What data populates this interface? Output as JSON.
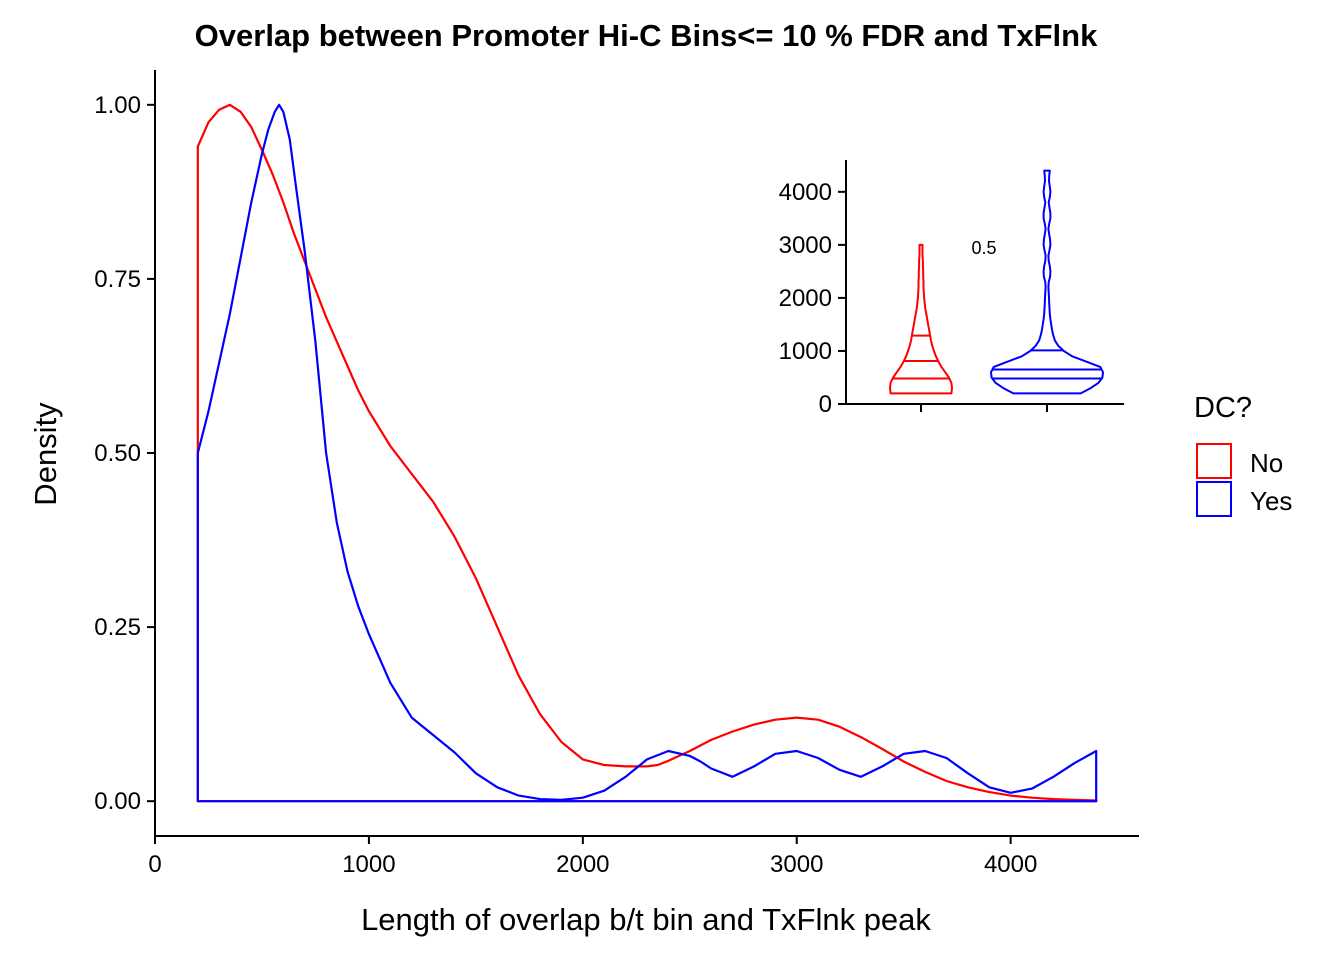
{
  "chart_data": [
    {
      "type": "area",
      "title": "Overlap between Promoter Hi-C Bins<= 10 % FDR and TxFlnk",
      "xlabel": "Length of overlap b/t bin and TxFlnk peak",
      "ylabel": "Density",
      "xlim": [
        0,
        4600
      ],
      "ylim": [
        -0.05,
        1.05
      ],
      "x_ticks": [
        "0",
        "1000",
        "2000",
        "3000",
        "4000"
      ],
      "y_ticks": [
        "0.00",
        "0.25",
        "0.50",
        "0.75",
        "1.00"
      ],
      "grid": false,
      "series": [
        {
          "name": "No",
          "color": "#ff0000",
          "x": [
            200,
            250,
            300,
            350,
            400,
            450,
            500,
            550,
            600,
            650,
            700,
            750,
            800,
            850,
            900,
            950,
            1000,
            1100,
            1200,
            1300,
            1400,
            1500,
            1600,
            1700,
            1800,
            1900,
            2000,
            2100,
            2200,
            2300,
            2350,
            2400,
            2500,
            2600,
            2700,
            2800,
            2900,
            3000,
            3100,
            3200,
            3300,
            3400,
            3500,
            3600,
            3700,
            3800,
            3900,
            4000,
            4100,
            4200,
            4300,
            4400
          ],
          "y": [
            0.94,
            0.975,
            0.993,
            1.0,
            0.99,
            0.968,
            0.935,
            0.9,
            0.86,
            0.815,
            0.775,
            0.735,
            0.695,
            0.66,
            0.625,
            0.59,
            0.56,
            0.51,
            0.47,
            0.43,
            0.38,
            0.32,
            0.25,
            0.18,
            0.125,
            0.085,
            0.06,
            0.052,
            0.05,
            0.05,
            0.052,
            0.058,
            0.072,
            0.088,
            0.1,
            0.11,
            0.117,
            0.12,
            0.117,
            0.107,
            0.092,
            0.075,
            0.057,
            0.042,
            0.029,
            0.02,
            0.013,
            0.008,
            0.005,
            0.003,
            0.002,
            0.001
          ]
        },
        {
          "name": "Yes",
          "color": "#0000ff",
          "x": [
            200,
            250,
            300,
            350,
            400,
            450,
            500,
            530,
            560,
            580,
            600,
            630,
            660,
            700,
            750,
            800,
            850,
            900,
            950,
            1000,
            1100,
            1200,
            1300,
            1400,
            1500,
            1600,
            1700,
            1800,
            1900,
            2000,
            2100,
            2200,
            2300,
            2400,
            2500,
            2550,
            2600,
            2700,
            2800,
            2900,
            3000,
            3100,
            3200,
            3300,
            3400,
            3500,
            3600,
            3700,
            3800,
            3900,
            4000,
            4100,
            4200,
            4300,
            4400
          ],
          "y": [
            0.5,
            0.56,
            0.63,
            0.7,
            0.78,
            0.86,
            0.93,
            0.965,
            0.99,
            1.0,
            0.99,
            0.95,
            0.88,
            0.79,
            0.66,
            0.5,
            0.4,
            0.33,
            0.28,
            0.24,
            0.17,
            0.12,
            0.095,
            0.07,
            0.04,
            0.02,
            0.008,
            0.003,
            0.002,
            0.005,
            0.015,
            0.035,
            0.06,
            0.072,
            0.065,
            0.057,
            0.047,
            0.035,
            0.05,
            0.068,
            0.072,
            0.062,
            0.045,
            0.035,
            0.05,
            0.068,
            0.072,
            0.062,
            0.04,
            0.02,
            0.012,
            0.018,
            0.035,
            0.055,
            0.072
          ]
        }
      ],
      "legend": {
        "title": "DC?",
        "entries": [
          "No",
          "Yes"
        ],
        "placement": "right"
      }
    },
    {
      "type": "violin",
      "ylim": [
        0,
        4600
      ],
      "y_ticks": [
        "0",
        "1000",
        "2000",
        "3000",
        "4000"
      ],
      "annotation": "0.5",
      "series": [
        {
          "name": "No",
          "color": "#ff0000",
          "profile_y": [
            200,
            300,
            400,
            500,
            600,
            700,
            800,
            900,
            1000,
            1100,
            1200,
            1300,
            1400,
            1500,
            1600,
            1700,
            1800,
            1900,
            2000,
            2100,
            2200,
            2300,
            2400,
            2500,
            2600,
            2700,
            2800,
            2900,
            3000
          ],
          "profile_half_width": [
            0.98,
            1.0,
            0.98,
            0.9,
            0.78,
            0.66,
            0.56,
            0.48,
            0.42,
            0.36,
            0.32,
            0.29,
            0.26,
            0.23,
            0.2,
            0.17,
            0.14,
            0.12,
            0.1,
            0.09,
            0.08,
            0.08,
            0.07,
            0.07,
            0.06,
            0.06,
            0.05,
            0.05,
            0.05
          ],
          "quantiles": [
            480,
            810,
            1290
          ]
        },
        {
          "name": "Yes",
          "color": "#0000ff",
          "profile_y": [
            200,
            300,
            400,
            500,
            600,
            700,
            800,
            900,
            1000,
            1100,
            1200,
            1300,
            1400,
            1500,
            1600,
            1700,
            1800,
            1900,
            2000,
            2100,
            2200,
            2300,
            2400,
            2500,
            2600,
            2700,
            2800,
            2900,
            3000,
            3100,
            3200,
            3300,
            3400,
            3500,
            3600,
            3700,
            3800,
            3900,
            4000,
            4100,
            4200,
            4300,
            4400
          ],
          "profile_half_width": [
            0.6,
            0.78,
            0.92,
            0.99,
            1.0,
            0.95,
            0.7,
            0.45,
            0.3,
            0.2,
            0.14,
            0.11,
            0.09,
            0.075,
            0.06,
            0.05,
            0.045,
            0.04,
            0.035,
            0.03,
            0.025,
            0.03,
            0.055,
            0.06,
            0.05,
            0.03,
            0.025,
            0.045,
            0.06,
            0.055,
            0.04,
            0.025,
            0.04,
            0.06,
            0.06,
            0.045,
            0.03,
            0.05,
            0.06,
            0.05,
            0.035,
            0.04,
            0.05
          ],
          "quantiles": [
            480,
            650,
            1010
          ]
        }
      ]
    }
  ]
}
